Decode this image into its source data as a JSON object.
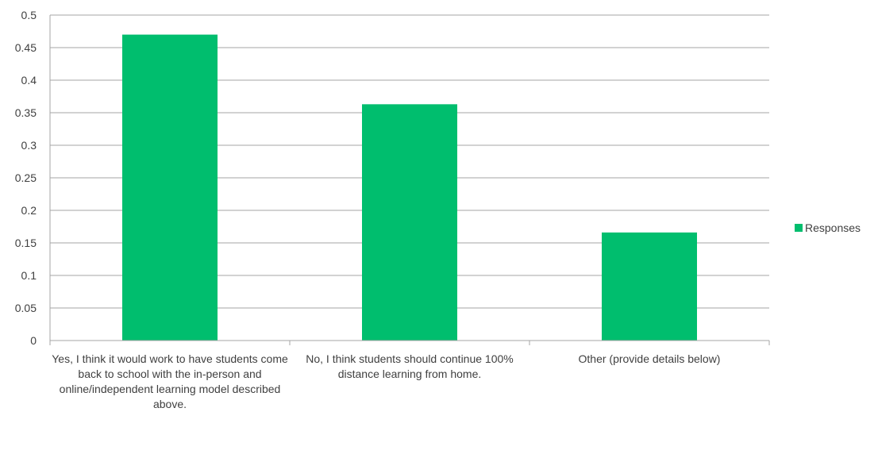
{
  "chart_data": {
    "type": "bar",
    "categories": [
      "Yes, I think it would work to have students come back to school with the in-person and online/independent learning model described above.",
      "No, I think students should continue 100% distance learning from home.",
      "Other (provide details below)"
    ],
    "series": [
      {
        "name": "Responses",
        "values": [
          0.47,
          0.363,
          0.166
        ],
        "color": "#00BE6E"
      }
    ],
    "yticks": [
      "0",
      "0.05",
      "0.1",
      "0.15",
      "0.2",
      "0.25",
      "0.3",
      "0.35",
      "0.4",
      "0.45",
      "0.5"
    ],
    "ylim": [
      0,
      0.5
    ],
    "grid": true,
    "legend_position": "right"
  }
}
